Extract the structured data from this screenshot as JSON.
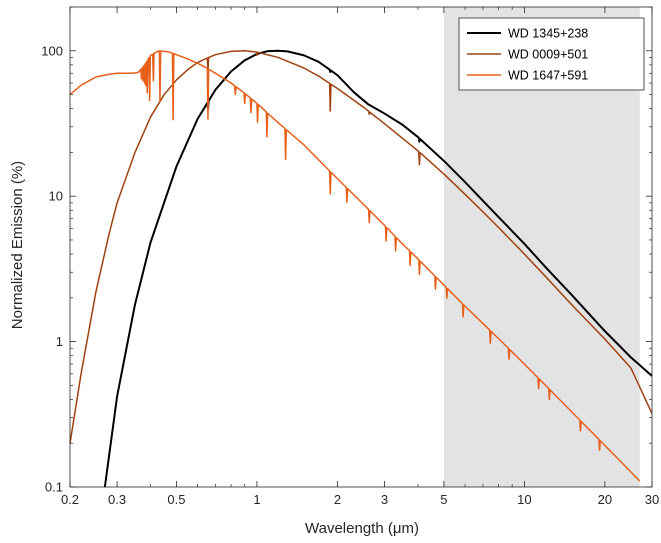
{
  "chart_data": {
    "type": "line",
    "xlabel": "Wavelength (μm)",
    "ylabel": "Normalized Emission (%)",
    "x_scale": "log",
    "y_scale": "log",
    "xlim": [
      0.2,
      30
    ],
    "ylim": [
      0.1,
      200
    ],
    "x_ticks": [
      0.2,
      0.3,
      0.5,
      1,
      2,
      3,
      5,
      10,
      20,
      30
    ],
    "x_tick_labels": [
      "0.2",
      "0.3",
      "0.5",
      "1",
      "2",
      "3",
      "5",
      "10",
      "20",
      "30"
    ],
    "y_ticks": [
      0.1,
      1,
      10,
      100
    ],
    "y_tick_labels": [
      "0.1",
      "1",
      "10",
      "100"
    ],
    "shaded_region": {
      "x": [
        5,
        27
      ],
      "color": "#e3e3e3"
    },
    "grid": false,
    "legend_position": "top-right",
    "series": [
      {
        "name": "WD 1345+238",
        "color": "#000000",
        "points": [
          [
            0.27,
            0.1
          ],
          [
            0.3,
            0.42
          ],
          [
            0.35,
            1.8
          ],
          [
            0.4,
            4.8
          ],
          [
            0.5,
            16
          ],
          [
            0.6,
            34
          ],
          [
            0.7,
            54
          ],
          [
            0.8,
            72
          ],
          [
            0.9,
            86
          ],
          [
            1.0,
            95
          ],
          [
            1.1,
            99.5
          ],
          [
            1.2,
            100
          ],
          [
            1.3,
            99
          ],
          [
            1.5,
            93
          ],
          [
            1.7,
            84
          ],
          [
            2.0,
            68
          ],
          [
            2.3,
            52
          ],
          [
            2.6,
            43
          ],
          [
            3.0,
            37
          ],
          [
            3.5,
            31
          ],
          [
            4.0,
            25.5
          ],
          [
            5.0,
            17.5
          ],
          [
            6.0,
            12.5
          ],
          [
            7.0,
            9.3
          ],
          [
            8.0,
            7.2
          ],
          [
            10.0,
            4.7
          ],
          [
            12.0,
            3.25
          ],
          [
            15.0,
            2.1
          ],
          [
            20.0,
            1.18
          ],
          [
            25.0,
            0.78
          ],
          [
            30.0,
            0.58
          ]
        ],
        "absorption_lines": [
          [
            0.656,
            0.9
          ],
          [
            1.88,
            0.97
          ],
          [
            4.05,
            0.95
          ]
        ]
      },
      {
        "name": "WD 0009+501",
        "color": "#a0420f",
        "points": [
          [
            0.2,
            0.2
          ],
          [
            0.22,
            0.6
          ],
          [
            0.25,
            2.2
          ],
          [
            0.28,
            5.5
          ],
          [
            0.3,
            9
          ],
          [
            0.35,
            20
          ],
          [
            0.4,
            35
          ],
          [
            0.45,
            50
          ],
          [
            0.5,
            63
          ],
          [
            0.55,
            74
          ],
          [
            0.6,
            83
          ],
          [
            0.65,
            89
          ],
          [
            0.7,
            94
          ],
          [
            0.8,
            99
          ],
          [
            0.9,
            100
          ],
          [
            1.0,
            98
          ],
          [
            1.2,
            90
          ],
          [
            1.5,
            76
          ],
          [
            1.7,
            67
          ],
          [
            2.0,
            55
          ],
          [
            2.5,
            41
          ],
          [
            3.0,
            31.5
          ],
          [
            3.5,
            25
          ],
          [
            4.0,
            20.5
          ],
          [
            5.0,
            14.2
          ],
          [
            6.0,
            10.3
          ],
          [
            7.0,
            7.8
          ],
          [
            8.0,
            6.1
          ],
          [
            10.0,
            4.0
          ],
          [
            12.0,
            2.8
          ],
          [
            15.0,
            1.8
          ],
          [
            20.0,
            1.04
          ],
          [
            25.0,
            0.66
          ],
          [
            30.0,
            0.32
          ]
        ],
        "absorption_lines": [
          [
            0.656,
            0.82
          ],
          [
            1.0,
            0.95
          ],
          [
            1.88,
            0.65
          ],
          [
            2.63,
            0.96
          ],
          [
            4.05,
            0.82
          ]
        ]
      },
      {
        "name": "WD 1647+591",
        "color": "#e85f1a",
        "points": [
          [
            0.2,
            50
          ],
          [
            0.22,
            58
          ],
          [
            0.25,
            66
          ],
          [
            0.28,
            69
          ],
          [
            0.3,
            70
          ],
          [
            0.34,
            70
          ],
          [
            0.36,
            71
          ],
          [
            0.38,
            80
          ],
          [
            0.4,
            93
          ],
          [
            0.43,
            100
          ],
          [
            0.47,
            98
          ],
          [
            0.5,
            94
          ],
          [
            0.55,
            88
          ],
          [
            0.6,
            82
          ],
          [
            0.65,
            76
          ],
          [
            0.7,
            70
          ],
          [
            0.8,
            60
          ],
          [
            0.9,
            51
          ],
          [
            1.0,
            43.5
          ],
          [
            1.2,
            32
          ],
          [
            1.5,
            22.5
          ],
          [
            1.8,
            16
          ],
          [
            2.0,
            13.2
          ],
          [
            2.5,
            8.8
          ],
          [
            3.0,
            6.3
          ],
          [
            3.5,
            4.7
          ],
          [
            4.0,
            3.7
          ],
          [
            5.0,
            2.45
          ],
          [
            6.0,
            1.75
          ],
          [
            7.0,
            1.33
          ],
          [
            8.0,
            1.05
          ],
          [
            10.0,
            0.7
          ],
          [
            12.0,
            0.5
          ],
          [
            15.0,
            0.33
          ],
          [
            20.0,
            0.193
          ],
          [
            25.0,
            0.127
          ],
          [
            27.0,
            0.11
          ]
        ],
        "absorption_lines": [
          [
            0.37,
            0.85
          ],
          [
            0.375,
            0.8
          ],
          [
            0.38,
            0.75
          ],
          [
            0.384,
            0.7
          ],
          [
            0.389,
            0.6
          ],
          [
            0.397,
            0.5
          ],
          [
            0.41,
            0.65
          ],
          [
            0.434,
            0.45
          ],
          [
            0.486,
            0.35
          ],
          [
            0.656,
            0.45
          ],
          [
            0.83,
            0.88
          ],
          [
            0.9,
            0.85
          ],
          [
            0.95,
            0.8
          ],
          [
            1.005,
            0.75
          ],
          [
            1.09,
            0.68
          ],
          [
            1.28,
            0.62
          ],
          [
            1.88,
            0.7
          ],
          [
            2.17,
            0.8
          ],
          [
            2.63,
            0.82
          ],
          [
            3.04,
            0.8
          ],
          [
            3.3,
            0.8
          ],
          [
            3.74,
            0.8
          ],
          [
            4.05,
            0.8
          ],
          [
            4.65,
            0.82
          ],
          [
            5.13,
            0.85
          ],
          [
            5.9,
            0.82
          ],
          [
            7.46,
            0.82
          ],
          [
            8.76,
            0.85
          ],
          [
            11.3,
            0.85
          ],
          [
            12.4,
            0.85
          ],
          [
            16.2,
            0.85
          ],
          [
            19.1,
            0.85
          ]
        ]
      }
    ]
  }
}
